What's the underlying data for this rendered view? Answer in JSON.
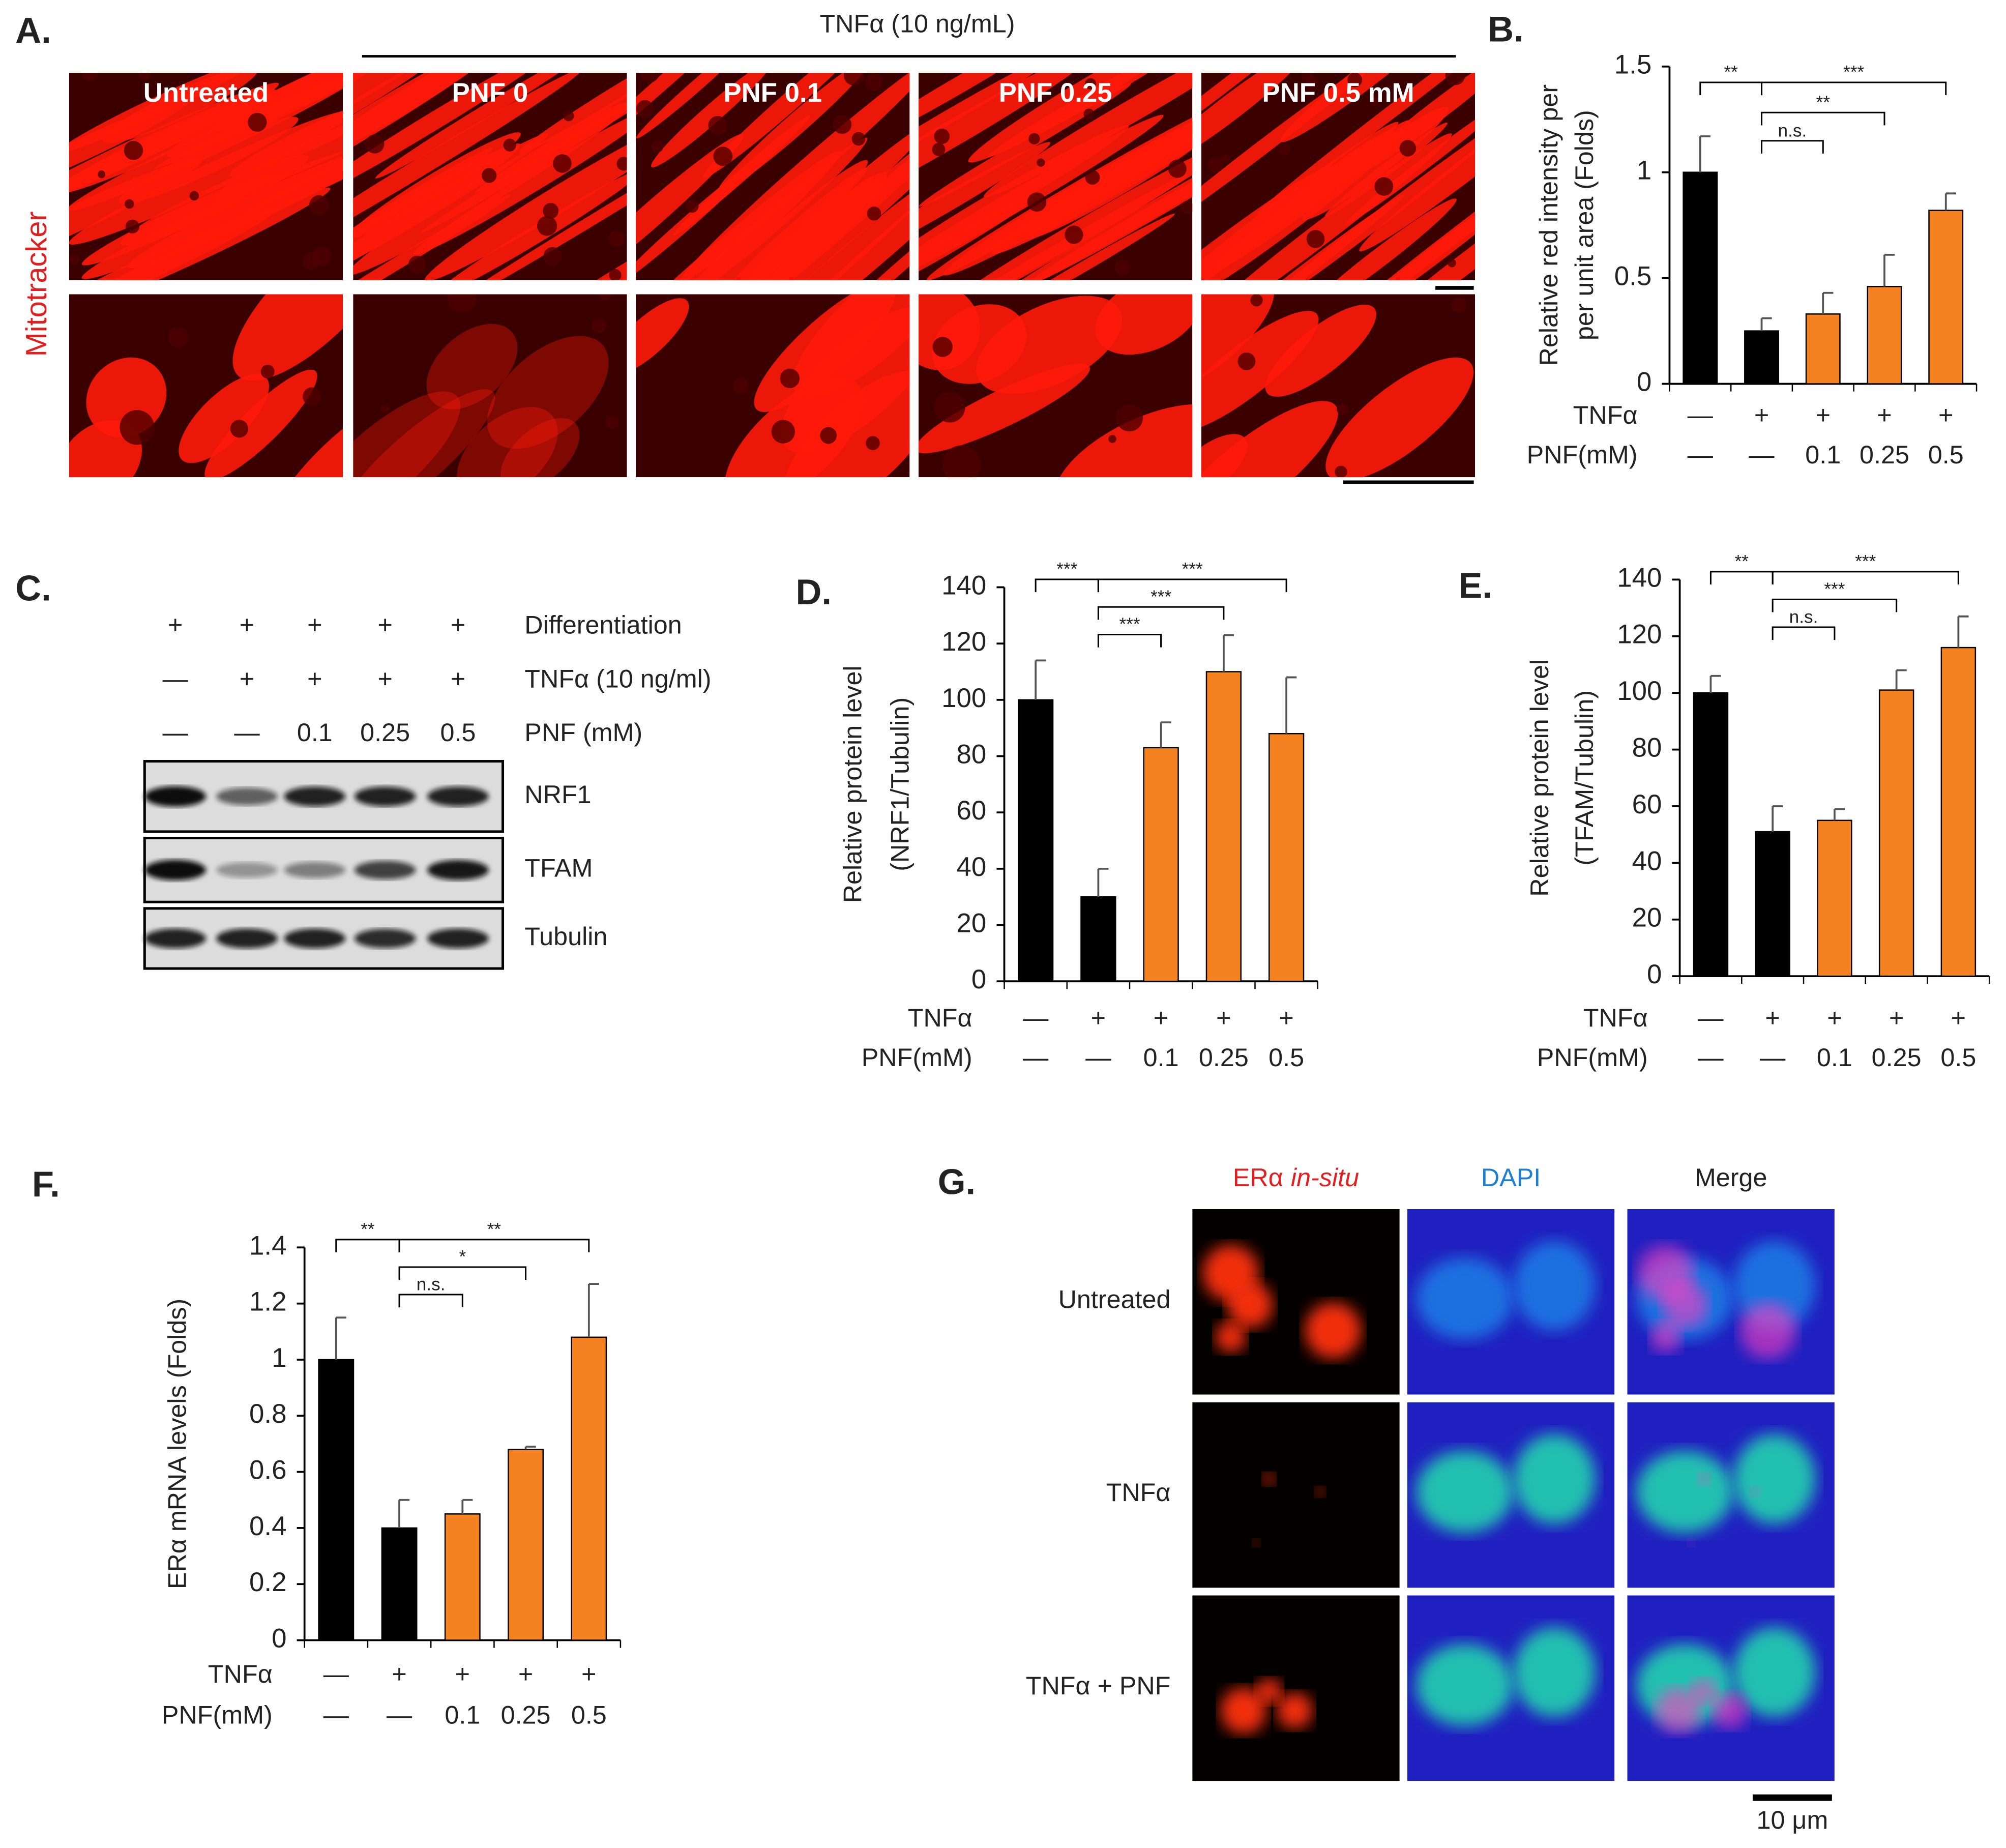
{
  "chart_data": [
    {
      "type": "bar",
      "panel_label": "B.",
      "ylabel": [
        "Relative red intensity per",
        "per unit area (Folds)"
      ],
      "values": [
        1.0,
        0.25,
        0.33,
        0.46,
        0.82
      ],
      "errors": [
        0.17,
        0.06,
        0.1,
        0.15,
        0.08
      ],
      "colors": [
        "#000000",
        "#000000",
        "#f58220",
        "#f58220",
        "#f58220"
      ],
      "ylim": [
        0,
        1.5
      ],
      "yticks": [
        0,
        0.5,
        1,
        1.5
      ],
      "rows": [
        {
          "label": "TNFα",
          "values": [
            "—",
            "+",
            "+",
            "+",
            "+"
          ]
        },
        {
          "label": "PNF(mM)",
          "values": [
            "—",
            "—",
            "0.1",
            "0.25",
            "0.5"
          ]
        }
      ],
      "annotations": [
        "**",
        "***",
        "**",
        "n.s."
      ]
    },
    {
      "type": "bar",
      "panel_label": "D.",
      "ylabel": [
        "Relative protein level",
        "(NRF1/Tubulin)"
      ],
      "values": [
        100,
        30,
        83,
        110,
        88
      ],
      "errors": [
        14,
        10,
        9,
        13,
        20
      ],
      "colors": [
        "#000000",
        "#000000",
        "#f58220",
        "#f58220",
        "#f58220"
      ],
      "ylim": [
        0,
        140
      ],
      "yticks": [
        0,
        20,
        40,
        60,
        80,
        100,
        120,
        140
      ],
      "rows": [
        {
          "label": "TNFα",
          "values": [
            "—",
            "+",
            "+",
            "+",
            "+"
          ]
        },
        {
          "label": "PNF(mM)",
          "values": [
            "—",
            "—",
            "0.1",
            "0.25",
            "0.5"
          ]
        }
      ],
      "annotations": [
        "***",
        "***",
        "***",
        "***"
      ]
    },
    {
      "type": "bar",
      "panel_label": "E.",
      "ylabel": [
        "Relative protein level",
        "(TFAM/Tubulin)"
      ],
      "values": [
        100,
        51,
        55,
        101,
        116
      ],
      "errors": [
        6,
        9,
        4,
        7,
        11
      ],
      "colors": [
        "#000000",
        "#000000",
        "#f58220",
        "#f58220",
        "#f58220"
      ],
      "ylim": [
        0,
        140
      ],
      "yticks": [
        0,
        20,
        40,
        60,
        80,
        100,
        120,
        140
      ],
      "rows": [
        {
          "label": "TNFα",
          "values": [
            "—",
            "+",
            "+",
            "+",
            "+"
          ]
        },
        {
          "label": "PNF(mM)",
          "values": [
            "—",
            "—",
            "0.1",
            "0.25",
            "0.5"
          ]
        }
      ],
      "annotations": [
        "**",
        "***",
        "***",
        "n.s."
      ]
    },
    {
      "type": "bar",
      "panel_label": "F.",
      "ylabel": [
        "ERα mRNA levels (Folds)"
      ],
      "values": [
        1.0,
        0.4,
        0.45,
        0.68,
        1.08
      ],
      "errors": [
        0.15,
        0.1,
        0.05,
        0.01,
        0.19
      ],
      "colors": [
        "#000000",
        "#000000",
        "#f58220",
        "#f58220",
        "#f58220"
      ],
      "ylim": [
        0,
        1.4
      ],
      "yticks": [
        0,
        0.2,
        0.4,
        0.6,
        0.8,
        1,
        1.2,
        1.4
      ],
      "rows": [
        {
          "label": "TNFα",
          "values": [
            "—",
            "+",
            "+",
            "+",
            "+"
          ]
        },
        {
          "label": "PNF(mM)",
          "values": [
            "—",
            "—",
            "0.1",
            "0.25",
            "0.5"
          ]
        }
      ],
      "annotations": [
        "**",
        "**",
        "*",
        "n.s."
      ]
    }
  ],
  "panel_a": {
    "panel_label": "A.",
    "header": "TNFα (10 ng/mL)",
    "columns": [
      "Untreated",
      "PNF 0",
      "PNF 0.1",
      "PNF 0.25",
      "PNF 0.5 mM"
    ],
    "stain": "Mitotracker"
  },
  "panel_c": {
    "panel_label": "C.",
    "rows": [
      {
        "label": "Differentiation",
        "marks": [
          "+",
          "+",
          "+",
          "+",
          "+"
        ]
      },
      {
        "label": "TNFα (10 ng/ml)",
        "marks": [
          "—",
          "+",
          "+",
          "+",
          "+"
        ]
      },
      {
        "label": "PNF (mM)",
        "marks": [
          "—",
          "—",
          "0.1",
          "0.25",
          "0.5"
        ]
      }
    ],
    "bands": [
      "NRF1",
      "TFAM",
      "Tubulin"
    ]
  },
  "panel_g": {
    "panel_label": "G.",
    "columns": [
      [
        "ERα",
        "in-situ"
      ],
      [
        "DAPI"
      ],
      [
        "Merge"
      ]
    ],
    "rows": [
      "Untreated",
      "TNFα",
      "TNFα + PNF"
    ],
    "scale": "10 μm"
  }
}
